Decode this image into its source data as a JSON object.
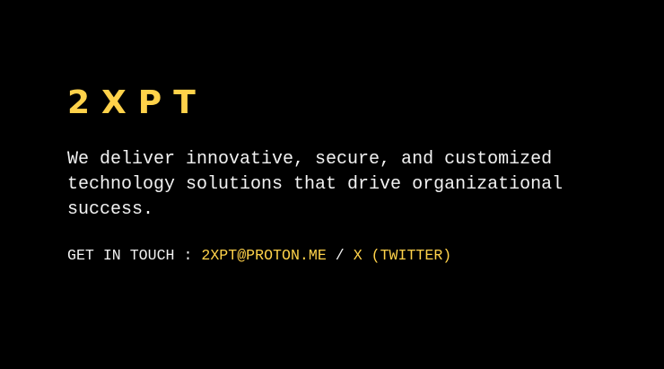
{
  "brand": {
    "name": "2XPT",
    "color": "#ffd24a"
  },
  "tagline": {
    "text": "We deliver innovative, secure, and customized technology solutions that drive organizational success.",
    "color": "#f2f2f2"
  },
  "contact": {
    "label": "GET IN TOUCH :",
    "separator": "/",
    "links": [
      {
        "label": "2XPT@PROTON.ME"
      },
      {
        "label": "X (TWITTER)"
      }
    ],
    "text_color": "#f2f2f2",
    "link_color": "#ffd24a"
  },
  "colors": {
    "background": "#000000"
  }
}
